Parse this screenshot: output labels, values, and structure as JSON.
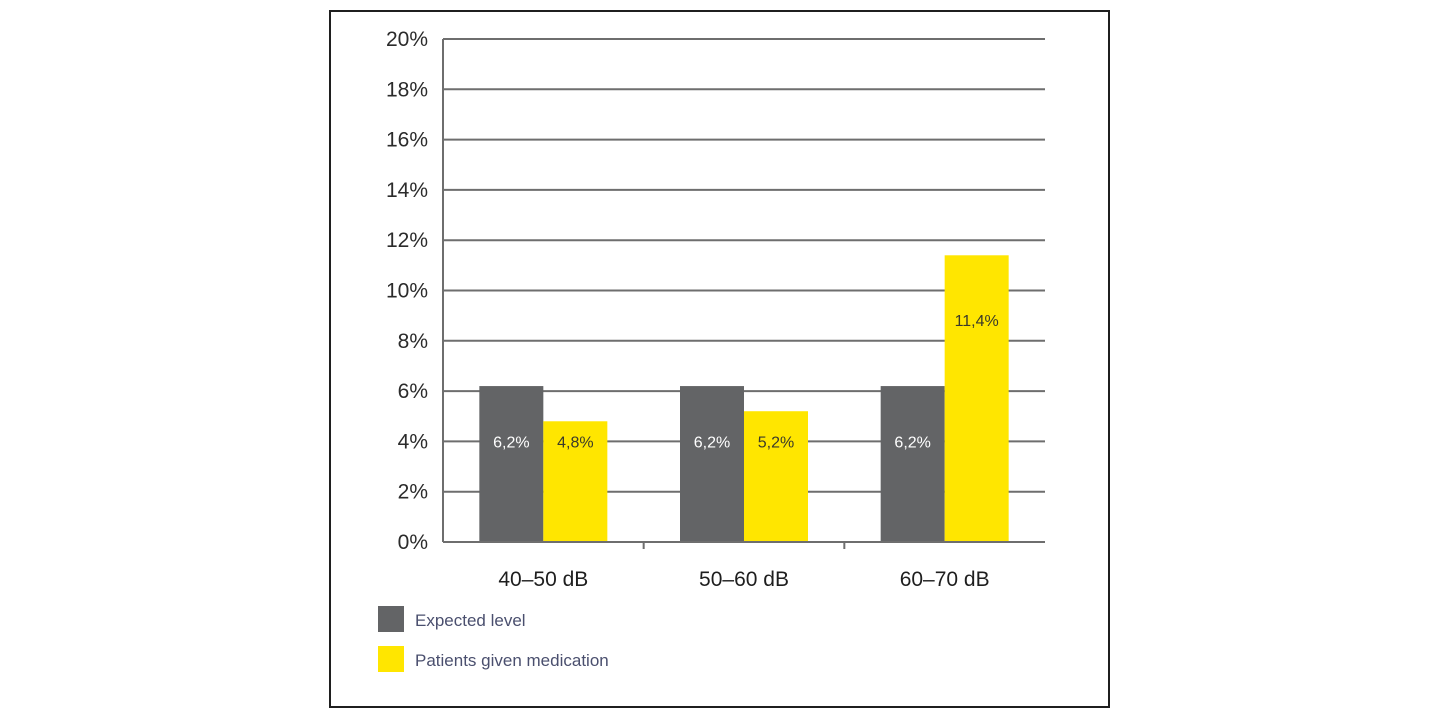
{
  "chart_data": {
    "type": "bar",
    "categories": [
      "40–50 dB",
      "50–60 dB",
      "60–70 dB"
    ],
    "series": [
      {
        "name": "Expected level",
        "values": [
          6.2,
          6.2,
          6.2
        ],
        "labels": [
          "6,2%",
          "6,2%",
          "6,2%"
        ],
        "color": "#636466",
        "label_color": "#ffffff"
      },
      {
        "name": "Patients given medication",
        "values": [
          4.8,
          5.2,
          11.4
        ],
        "labels": [
          "4,8%",
          "5,2%",
          "11,4%"
        ],
        "color": "#ffe600",
        "label_color": "#3a3a2a"
      }
    ],
    "y_ticks": [
      "0%",
      "2%",
      "4%",
      "6%",
      "8%",
      "10%",
      "12%",
      "14%",
      "16%",
      "18%",
      "20%"
    ],
    "ylim": [
      0,
      20
    ],
    "grid": true,
    "legend_position": "bottom-left"
  }
}
